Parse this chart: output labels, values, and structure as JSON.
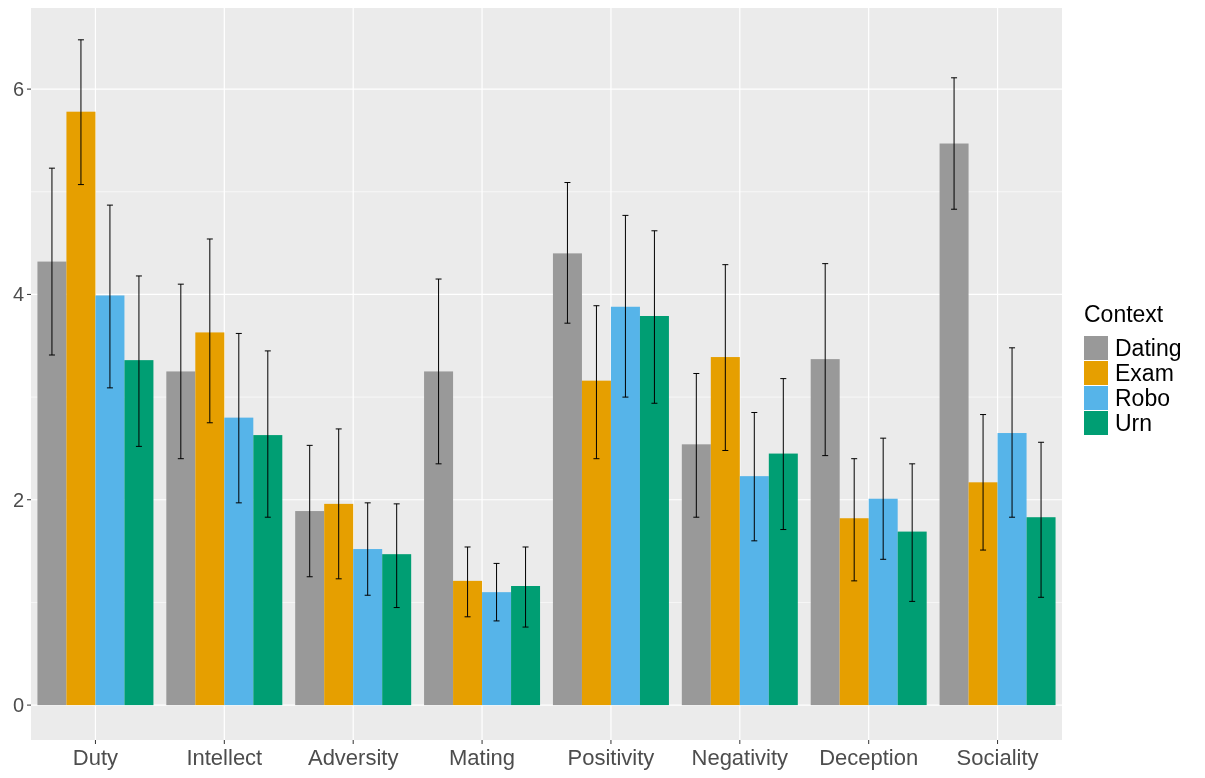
{
  "chart_data": {
    "type": "bar",
    "categories": [
      "Duty",
      "Intellect",
      "Adversity",
      "Mating",
      "Positivity",
      "Negativity",
      "Deception",
      "Sociality"
    ],
    "legend_title": "Context",
    "legend": "right",
    "grid": true,
    "ylim": [
      -0.34,
      6.79
    ],
    "yticks": [
      0,
      2,
      4,
      6
    ],
    "series": [
      {
        "name": "Dating",
        "color": "#999999",
        "values": [
          4.32,
          3.25,
          1.89,
          3.25,
          4.4,
          2.54,
          3.37,
          5.47
        ],
        "errors": [
          [
            3.41,
            5.23
          ],
          [
            2.4,
            4.1
          ],
          [
            1.25,
            2.53
          ],
          [
            2.35,
            4.15
          ],
          [
            3.72,
            5.09
          ],
          [
            1.83,
            3.23
          ],
          [
            2.43,
            4.3
          ],
          [
            4.83,
            6.11
          ]
        ]
      },
      {
        "name": "Exam",
        "color": "#e69f00",
        "values": [
          5.78,
          3.63,
          1.96,
          1.21,
          3.16,
          3.39,
          1.82,
          2.17
        ],
        "errors": [
          [
            5.07,
            6.48
          ],
          [
            2.75,
            4.54
          ],
          [
            1.23,
            2.69
          ],
          [
            0.86,
            1.54
          ],
          [
            2.4,
            3.89
          ],
          [
            2.48,
            4.29
          ],
          [
            1.21,
            2.4
          ],
          [
            1.51,
            2.83
          ]
        ]
      },
      {
        "name": "Robo",
        "color": "#56b4e9",
        "values": [
          3.99,
          2.8,
          1.52,
          1.1,
          3.88,
          2.23,
          2.01,
          2.65
        ],
        "errors": [
          [
            3.09,
            4.87
          ],
          [
            1.97,
            3.62
          ],
          [
            1.07,
            1.97
          ],
          [
            0.82,
            1.38
          ],
          [
            3.0,
            4.77
          ],
          [
            1.6,
            2.85
          ],
          [
            1.42,
            2.6
          ],
          [
            1.83,
            3.48
          ]
        ]
      },
      {
        "name": "Urn",
        "color": "#009e73",
        "values": [
          3.36,
          2.63,
          1.47,
          1.16,
          3.79,
          2.45,
          1.69,
          1.83
        ],
        "errors": [
          [
            2.52,
            4.18
          ],
          [
            1.83,
            3.45
          ],
          [
            0.95,
            1.96
          ],
          [
            0.76,
            1.54
          ],
          [
            2.94,
            4.62
          ],
          [
            1.71,
            3.18
          ],
          [
            1.01,
            2.35
          ],
          [
            1.05,
            2.56
          ]
        ]
      }
    ]
  }
}
